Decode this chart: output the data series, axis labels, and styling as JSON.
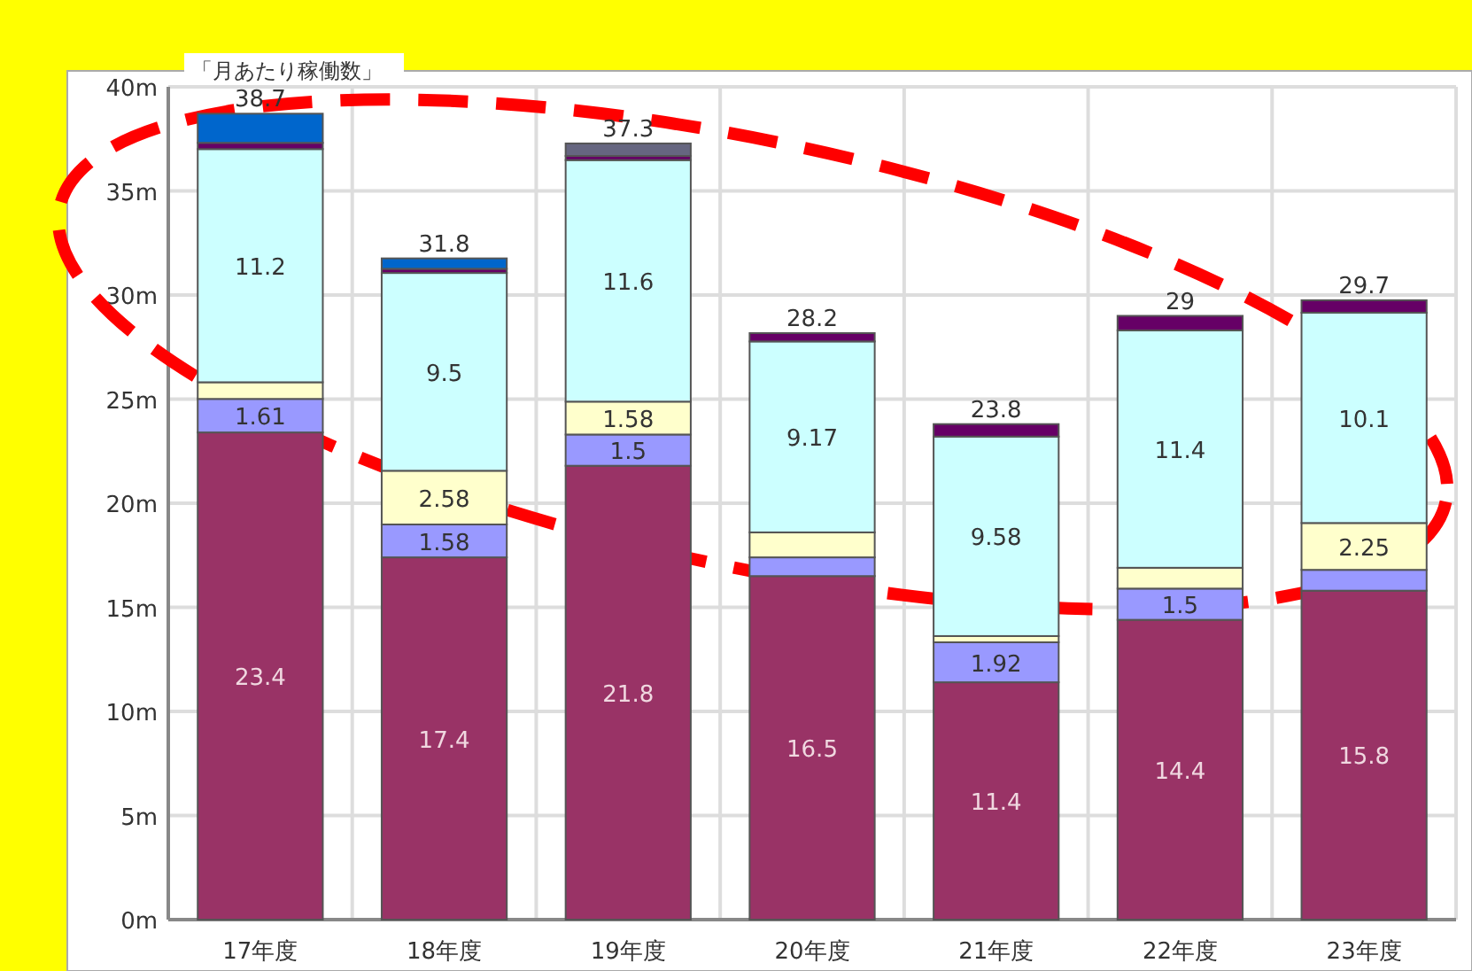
{
  "chart_data": {
    "type": "bar",
    "stacked": true,
    "ylabel": "「月あたり稼働数」",
    "categories": [
      "17年度",
      "18年度",
      "19年度",
      "20年度",
      "21年度",
      "22年度",
      "23年度"
    ],
    "series": [
      {
        "color": "#993366",
        "values": [
          23.4,
          17.4,
          21.8,
          16.5,
          11.4,
          14.4,
          15.8
        ],
        "value_labels": [
          "23.4",
          "17.4",
          "21.8",
          "16.5",
          "11.4",
          "14.4",
          "15.8"
        ]
      },
      {
        "color": "#9999ff",
        "values": [
          1.61,
          1.58,
          1.5,
          0.9,
          1.92,
          1.5,
          1.0
        ],
        "value_labels": [
          "1.61",
          "1.58",
          "1.5",
          null,
          "1.92",
          "1.5",
          null
        ]
      },
      {
        "color": "#ffffcc",
        "values": [
          0.8,
          2.58,
          1.58,
          1.2,
          0.3,
          1.0,
          2.25
        ],
        "value_labels": [
          null,
          "2.58",
          "1.58",
          null,
          null,
          null,
          "2.25"
        ]
      },
      {
        "color": "#ccffff",
        "values": [
          11.2,
          9.5,
          11.6,
          9.17,
          9.58,
          11.4,
          10.1
        ],
        "value_labels": [
          "11.2",
          "9.5",
          "11.6",
          "9.17",
          "9.58",
          "11.4",
          "10.1"
        ]
      },
      {
        "color": "#660066",
        "values": [
          0.3,
          0.2,
          0.2,
          0.4,
          0.6,
          0.7,
          0.6
        ]
      },
      {
        "color": "#0066cc",
        "values": [
          1.4,
          0.5,
          null,
          null,
          null,
          null,
          null
        ]
      },
      {
        "color": "#666680",
        "values": [
          null,
          null,
          0.6,
          null,
          null,
          null,
          null
        ]
      }
    ],
    "totals": [
      "38.7",
      "31.8",
      "37.3",
      "28.2",
      "23.8",
      "29",
      "29.7"
    ],
    "ylim": [
      0,
      40
    ],
    "yticks": [
      {
        "value": 0,
        "label": "0m"
      },
      {
        "value": 5,
        "label": "5m"
      },
      {
        "value": 10,
        "label": "10m"
      },
      {
        "value": 15,
        "label": "15m"
      },
      {
        "value": 20,
        "label": "20m"
      },
      {
        "value": 25,
        "label": "25m"
      },
      {
        "value": 30,
        "label": "30m"
      },
      {
        "value": 35,
        "label": "35m"
      },
      {
        "value": 40,
        "label": "40m"
      }
    ],
    "grid": true
  }
}
